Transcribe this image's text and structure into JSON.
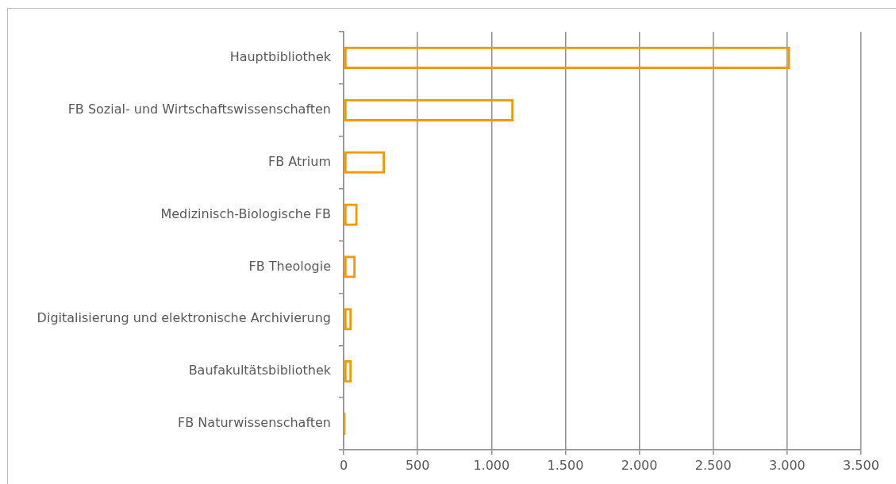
{
  "chart_data": {
    "type": "bar",
    "orientation": "horizontal",
    "categories": [
      "Hauptbibliothek",
      "FB Sozial- und Wirtschaftswissenschaften",
      "FB Atrium",
      "Medizinisch-Biologische FB",
      "FB Theologie",
      "Digitalisierung und elektronische Archivierung",
      "Baufakultätsbibliothek",
      "FB Naturwissenschaften"
    ],
    "values": [
      3020,
      1150,
      280,
      95,
      82,
      55,
      55,
      14
    ],
    "color": "#f39800",
    "xlim": [
      0,
      3500
    ],
    "xticks": [
      0,
      500,
      {
        "value": 1000,
        "label": "1.000"
      },
      {
        "value": 1500,
        "label": "1.500"
      },
      {
        "value": 2000,
        "label": "2.000"
      },
      {
        "value": 2500,
        "label": "2.500"
      },
      {
        "value": 3000,
        "label": "3.000"
      },
      {
        "value": 3500,
        "label": "3.500"
      }
    ],
    "grid": "x"
  }
}
